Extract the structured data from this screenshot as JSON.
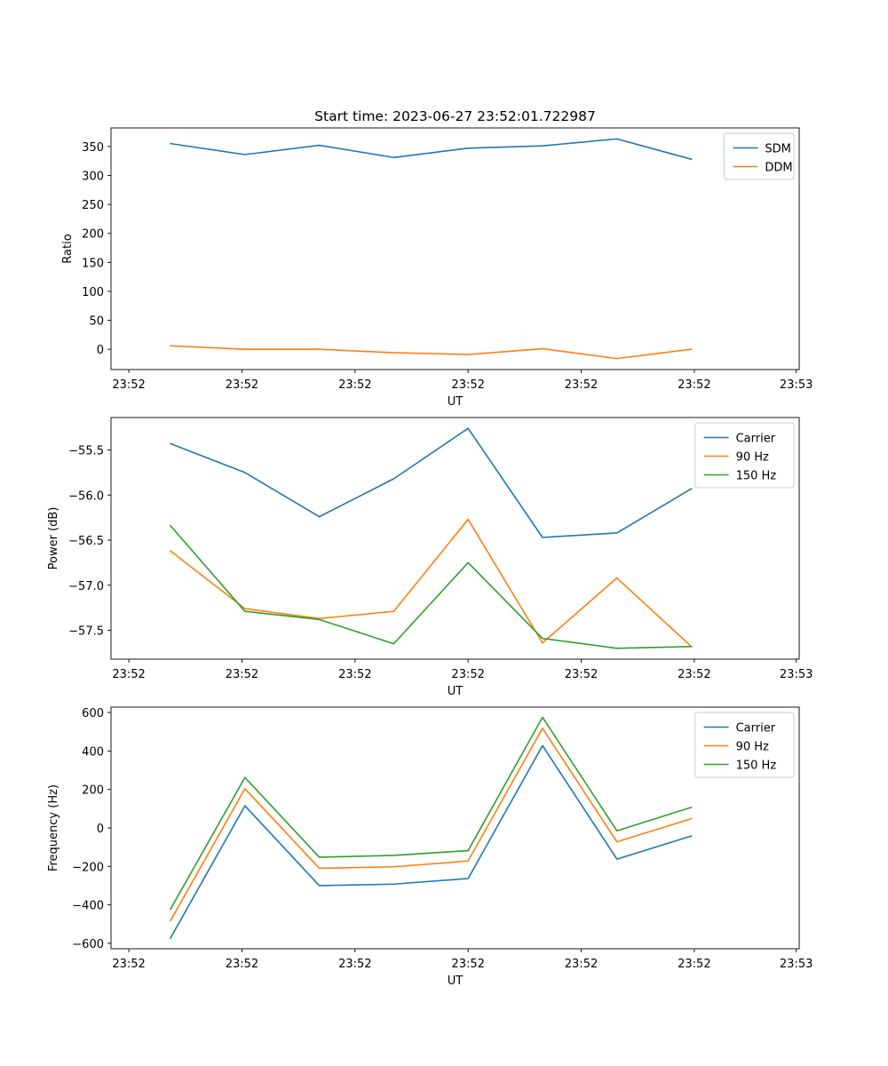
{
  "colors": {
    "series_1": "#1f77b4",
    "series_2": "#ff7f0e",
    "series_3": "#2ca02c",
    "axes": "#000000",
    "legend_border": "#cccccc"
  },
  "chart_data": [
    {
      "type": "line",
      "title": "Start time: 2023-06-27 23:52:01.722987",
      "xlabel": "UT",
      "ylabel": "Ratio",
      "x": [
        1,
        2,
        3,
        4,
        5,
        6,
        7,
        8
      ],
      "xlim": [
        0.2,
        9.45
      ],
      "x_ticks": [
        {
          "value": 0.44,
          "label": "23:52"
        },
        {
          "value": 1.96,
          "label": "23:52"
        },
        {
          "value": 3.48,
          "label": "23:52"
        },
        {
          "value": 5.0,
          "label": "23:52"
        },
        {
          "value": 6.52,
          "label": "23:52"
        },
        {
          "value": 8.04,
          "label": "23:52"
        },
        {
          "value": 9.41,
          "label": "23:53"
        }
      ],
      "ylim": [
        -35,
        382
      ],
      "y_ticks": [
        0,
        50,
        100,
        150,
        200,
        250,
        300,
        350
      ],
      "grid": false,
      "legend": "top-right",
      "series": [
        {
          "name": "SDM",
          "color": "#1f77b4",
          "values": [
            355,
            336,
            352,
            331,
            347,
            351,
            363,
            328
          ]
        },
        {
          "name": "DDM",
          "color": "#ff7f0e",
          "values": [
            6,
            0,
            0,
            -6,
            -9,
            1,
            -16,
            0
          ]
        }
      ]
    },
    {
      "type": "line",
      "title": "",
      "xlabel": "UT",
      "ylabel": "Power (dB)",
      "x": [
        1,
        2,
        3,
        4,
        5,
        6,
        7,
        8
      ],
      "xlim": [
        0.2,
        9.45
      ],
      "x_ticks": [
        {
          "value": 0.44,
          "label": "23:52"
        },
        {
          "value": 1.96,
          "label": "23:52"
        },
        {
          "value": 3.48,
          "label": "23:52"
        },
        {
          "value": 5.0,
          "label": "23:52"
        },
        {
          "value": 6.52,
          "label": "23:52"
        },
        {
          "value": 8.04,
          "label": "23:52"
        },
        {
          "value": 9.41,
          "label": "23:53"
        }
      ],
      "ylim": [
        -57.82,
        -55.14
      ],
      "y_ticks": [
        -57.5,
        -57.0,
        -56.5,
        -56.0,
        -55.5
      ],
      "y_tick_labels": [
        "−57.5",
        "−57.0",
        "−56.5",
        "−56.0",
        "−55.5"
      ],
      "grid": false,
      "legend": "top-right",
      "series": [
        {
          "name": "Carrier",
          "color": "#1f77b4",
          "values": [
            -55.43,
            -55.75,
            -56.24,
            -55.82,
            -55.26,
            -56.47,
            -56.42,
            -55.93
          ]
        },
        {
          "name": "90 Hz",
          "color": "#ff7f0e",
          "values": [
            -56.62,
            -57.26,
            -57.37,
            -57.29,
            -56.27,
            -57.64,
            -56.92,
            -57.68
          ]
        },
        {
          "name": "150 Hz",
          "color": "#2ca02c",
          "values": [
            -56.34,
            -57.29,
            -57.38,
            -57.65,
            -56.75,
            -57.59,
            -57.7,
            -57.68
          ]
        }
      ]
    },
    {
      "type": "line",
      "title": "",
      "xlabel": "UT",
      "ylabel": "Frequency (Hz)",
      "x": [
        1,
        2,
        3,
        4,
        5,
        6,
        7,
        8
      ],
      "xlim": [
        0.2,
        9.45
      ],
      "x_ticks": [
        {
          "value": 0.44,
          "label": "23:52"
        },
        {
          "value": 1.96,
          "label": "23:52"
        },
        {
          "value": 3.48,
          "label": "23:52"
        },
        {
          "value": 5.0,
          "label": "23:52"
        },
        {
          "value": 6.52,
          "label": "23:52"
        },
        {
          "value": 8.04,
          "label": "23:52"
        },
        {
          "value": 9.41,
          "label": "23:53"
        }
      ],
      "ylim": [
        -628,
        628
      ],
      "y_ticks": [
        -600,
        -400,
        -200,
        0,
        200,
        400,
        600
      ],
      "y_tick_labels": [
        "−600",
        "−400",
        "−200",
        "0",
        "200",
        "400",
        "600"
      ],
      "grid": false,
      "legend": "top-right",
      "series": [
        {
          "name": "Carrier",
          "color": "#1f77b4",
          "values": [
            -572,
            115,
            -300,
            -292,
            -263,
            428,
            -162,
            -42
          ]
        },
        {
          "name": "90 Hz",
          "color": "#ff7f0e",
          "values": [
            -482,
            204,
            -210,
            -202,
            -172,
            518,
            -72,
            48
          ]
        },
        {
          "name": "150 Hz",
          "color": "#2ca02c",
          "values": [
            -422,
            262,
            -152,
            -143,
            -118,
            575,
            -15,
            107
          ]
        }
      ]
    }
  ]
}
